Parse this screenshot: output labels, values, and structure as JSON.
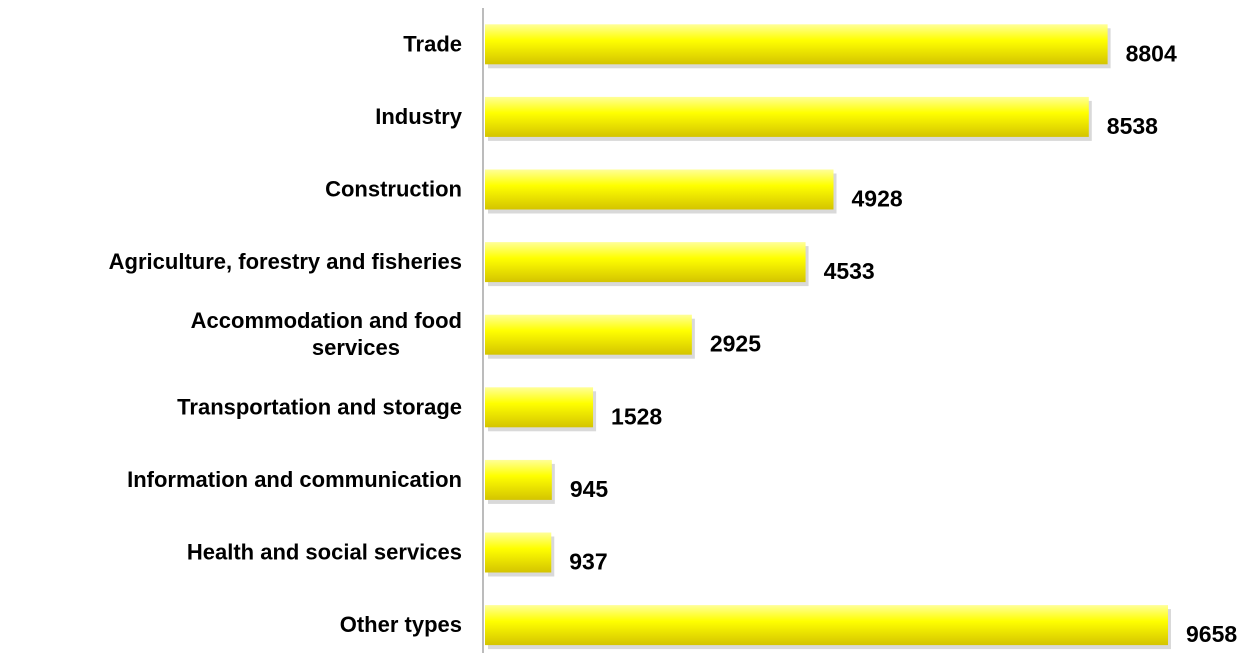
{
  "chart_data": {
    "type": "bar",
    "orientation": "horizontal",
    "title": "",
    "xlabel": "",
    "ylabel": "",
    "categories": [
      [
        "Trade"
      ],
      [
        "Industry"
      ],
      [
        "Construction"
      ],
      [
        "Agriculture, forestry and fisheries"
      ],
      [
        "Accommodation and food",
        "services"
      ],
      [
        "Transportation and storage"
      ],
      [
        "Information and communication"
      ],
      [
        "Health and social services"
      ],
      [
        "Other types"
      ]
    ],
    "values": [
      8804,
      8538,
      4928,
      4533,
      2925,
      1528,
      945,
      937,
      9658
    ],
    "value_labels": [
      "8804",
      "8538",
      "4928",
      "4533",
      "2925",
      "1528",
      "945",
      "937",
      "9658"
    ],
    "xlim": [
      0,
      9658
    ],
    "grid": false,
    "legend": "none",
    "colors": {
      "bar_light": "#ffff99",
      "bar": "#ffff00",
      "bar_dark": "#d4c400",
      "axis": "#a6a6a6",
      "shadow": "#bfbfbf"
    }
  }
}
